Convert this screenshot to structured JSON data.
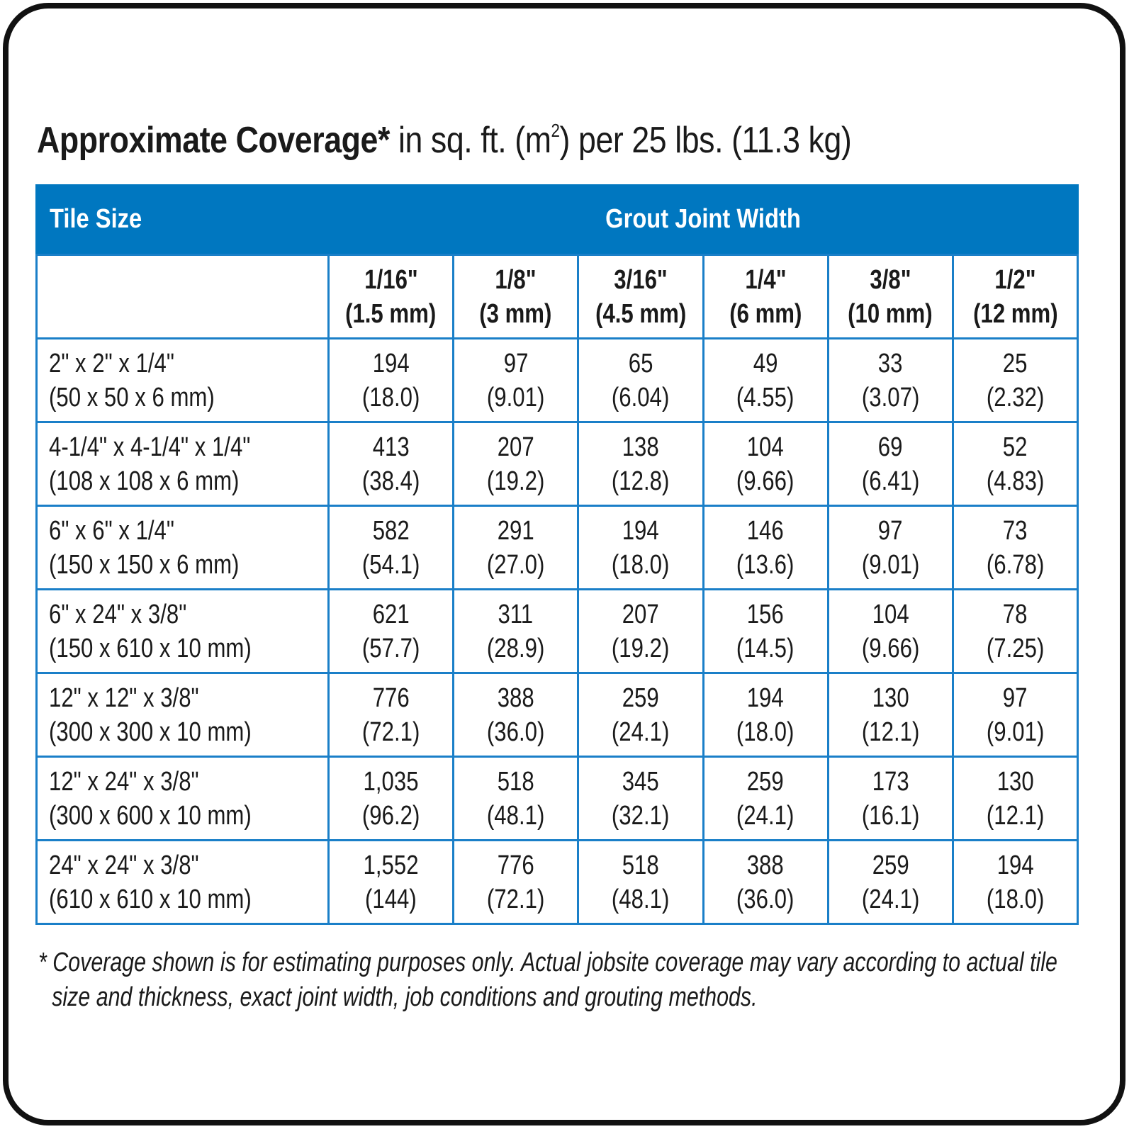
{
  "title": {
    "bold": "Approximate Coverage*",
    "rest_a": " in sq. ft. (m",
    "sup": "2",
    "rest_b": ") per 25 lbs. (11.3 kg)"
  },
  "header": {
    "tile_size": "Tile Size",
    "grout_joint_width": "Grout Joint Width"
  },
  "colors": {
    "accent": "#0077c0",
    "grid": "#1a7fc8"
  },
  "columns": [
    {
      "imperial": "1/16\"",
      "metric": "(1.5 mm)"
    },
    {
      "imperial": "1/8\"",
      "metric": "(3 mm)"
    },
    {
      "imperial": "3/16\"",
      "metric": "(4.5 mm)"
    },
    {
      "imperial": "1/4\"",
      "metric": "(6 mm)"
    },
    {
      "imperial": "3/8\"",
      "metric": "(10 mm)"
    },
    {
      "imperial": "1/2\"",
      "metric": "(12 mm)"
    }
  ],
  "rows": [
    {
      "size": "2\" x 2\" x 1/4\"",
      "size_mm": "(50 x 50 x 6 mm)",
      "values": [
        [
          "194",
          "(18.0)"
        ],
        [
          "97",
          "(9.01)"
        ],
        [
          "65",
          "(6.04)"
        ],
        [
          "49",
          "(4.55)"
        ],
        [
          "33",
          "(3.07)"
        ],
        [
          "25",
          "(2.32)"
        ]
      ]
    },
    {
      "size": "4-1/4\" x 4-1/4\" x 1/4\"",
      "size_mm": "(108 x 108 x 6 mm)",
      "values": [
        [
          "413",
          "(38.4)"
        ],
        [
          "207",
          "(19.2)"
        ],
        [
          "138",
          "(12.8)"
        ],
        [
          "104",
          "(9.66)"
        ],
        [
          "69",
          "(6.41)"
        ],
        [
          "52",
          "(4.83)"
        ]
      ]
    },
    {
      "size": "6\" x 6\" x 1/4\"",
      "size_mm": "(150 x 150 x 6 mm)",
      "values": [
        [
          "582",
          "(54.1)"
        ],
        [
          "291",
          "(27.0)"
        ],
        [
          "194",
          "(18.0)"
        ],
        [
          "146",
          "(13.6)"
        ],
        [
          "97",
          "(9.01)"
        ],
        [
          "73",
          "(6.78)"
        ]
      ]
    },
    {
      "size": "6\" x 24\" x 3/8\"",
      "size_mm": "(150 x 610 x 10 mm)",
      "values": [
        [
          "621",
          "(57.7)"
        ],
        [
          "311",
          "(28.9)"
        ],
        [
          "207",
          "(19.2)"
        ],
        [
          "156",
          "(14.5)"
        ],
        [
          "104",
          "(9.66)"
        ],
        [
          "78",
          "(7.25)"
        ]
      ]
    },
    {
      "size": "12\" x 12\" x 3/8\"",
      "size_mm": "(300 x 300 x 10 mm)",
      "values": [
        [
          "776",
          "(72.1)"
        ],
        [
          "388",
          "(36.0)"
        ],
        [
          "259",
          "(24.1)"
        ],
        [
          "194",
          "(18.0)"
        ],
        [
          "130",
          "(12.1)"
        ],
        [
          "97",
          "(9.01)"
        ]
      ]
    },
    {
      "size": "12\" x 24\" x 3/8\"",
      "size_mm": "(300 x 600 x 10 mm)",
      "values": [
        [
          "1,035",
          "(96.2)"
        ],
        [
          "518",
          "(48.1)"
        ],
        [
          "345",
          "(32.1)"
        ],
        [
          "259",
          "(24.1)"
        ],
        [
          "173",
          "(16.1)"
        ],
        [
          "130",
          "(12.1)"
        ]
      ]
    },
    {
      "size": "24\" x 24\" x 3/8\"",
      "size_mm": "(610 x 610 x 10 mm)",
      "values": [
        [
          "1,552",
          "(144)"
        ],
        [
          "776",
          "(72.1)"
        ],
        [
          "518",
          "(48.1)"
        ],
        [
          "388",
          "(36.0)"
        ],
        [
          "259",
          "(24.1)"
        ],
        [
          "194",
          "(18.0)"
        ]
      ]
    }
  ],
  "footnote": {
    "line1": "* Coverage shown is for estimating purposes only. Actual jobsite coverage may vary according to actual tile",
    "line2": "size and thickness, exact joint width, job conditions and grouting methods."
  }
}
